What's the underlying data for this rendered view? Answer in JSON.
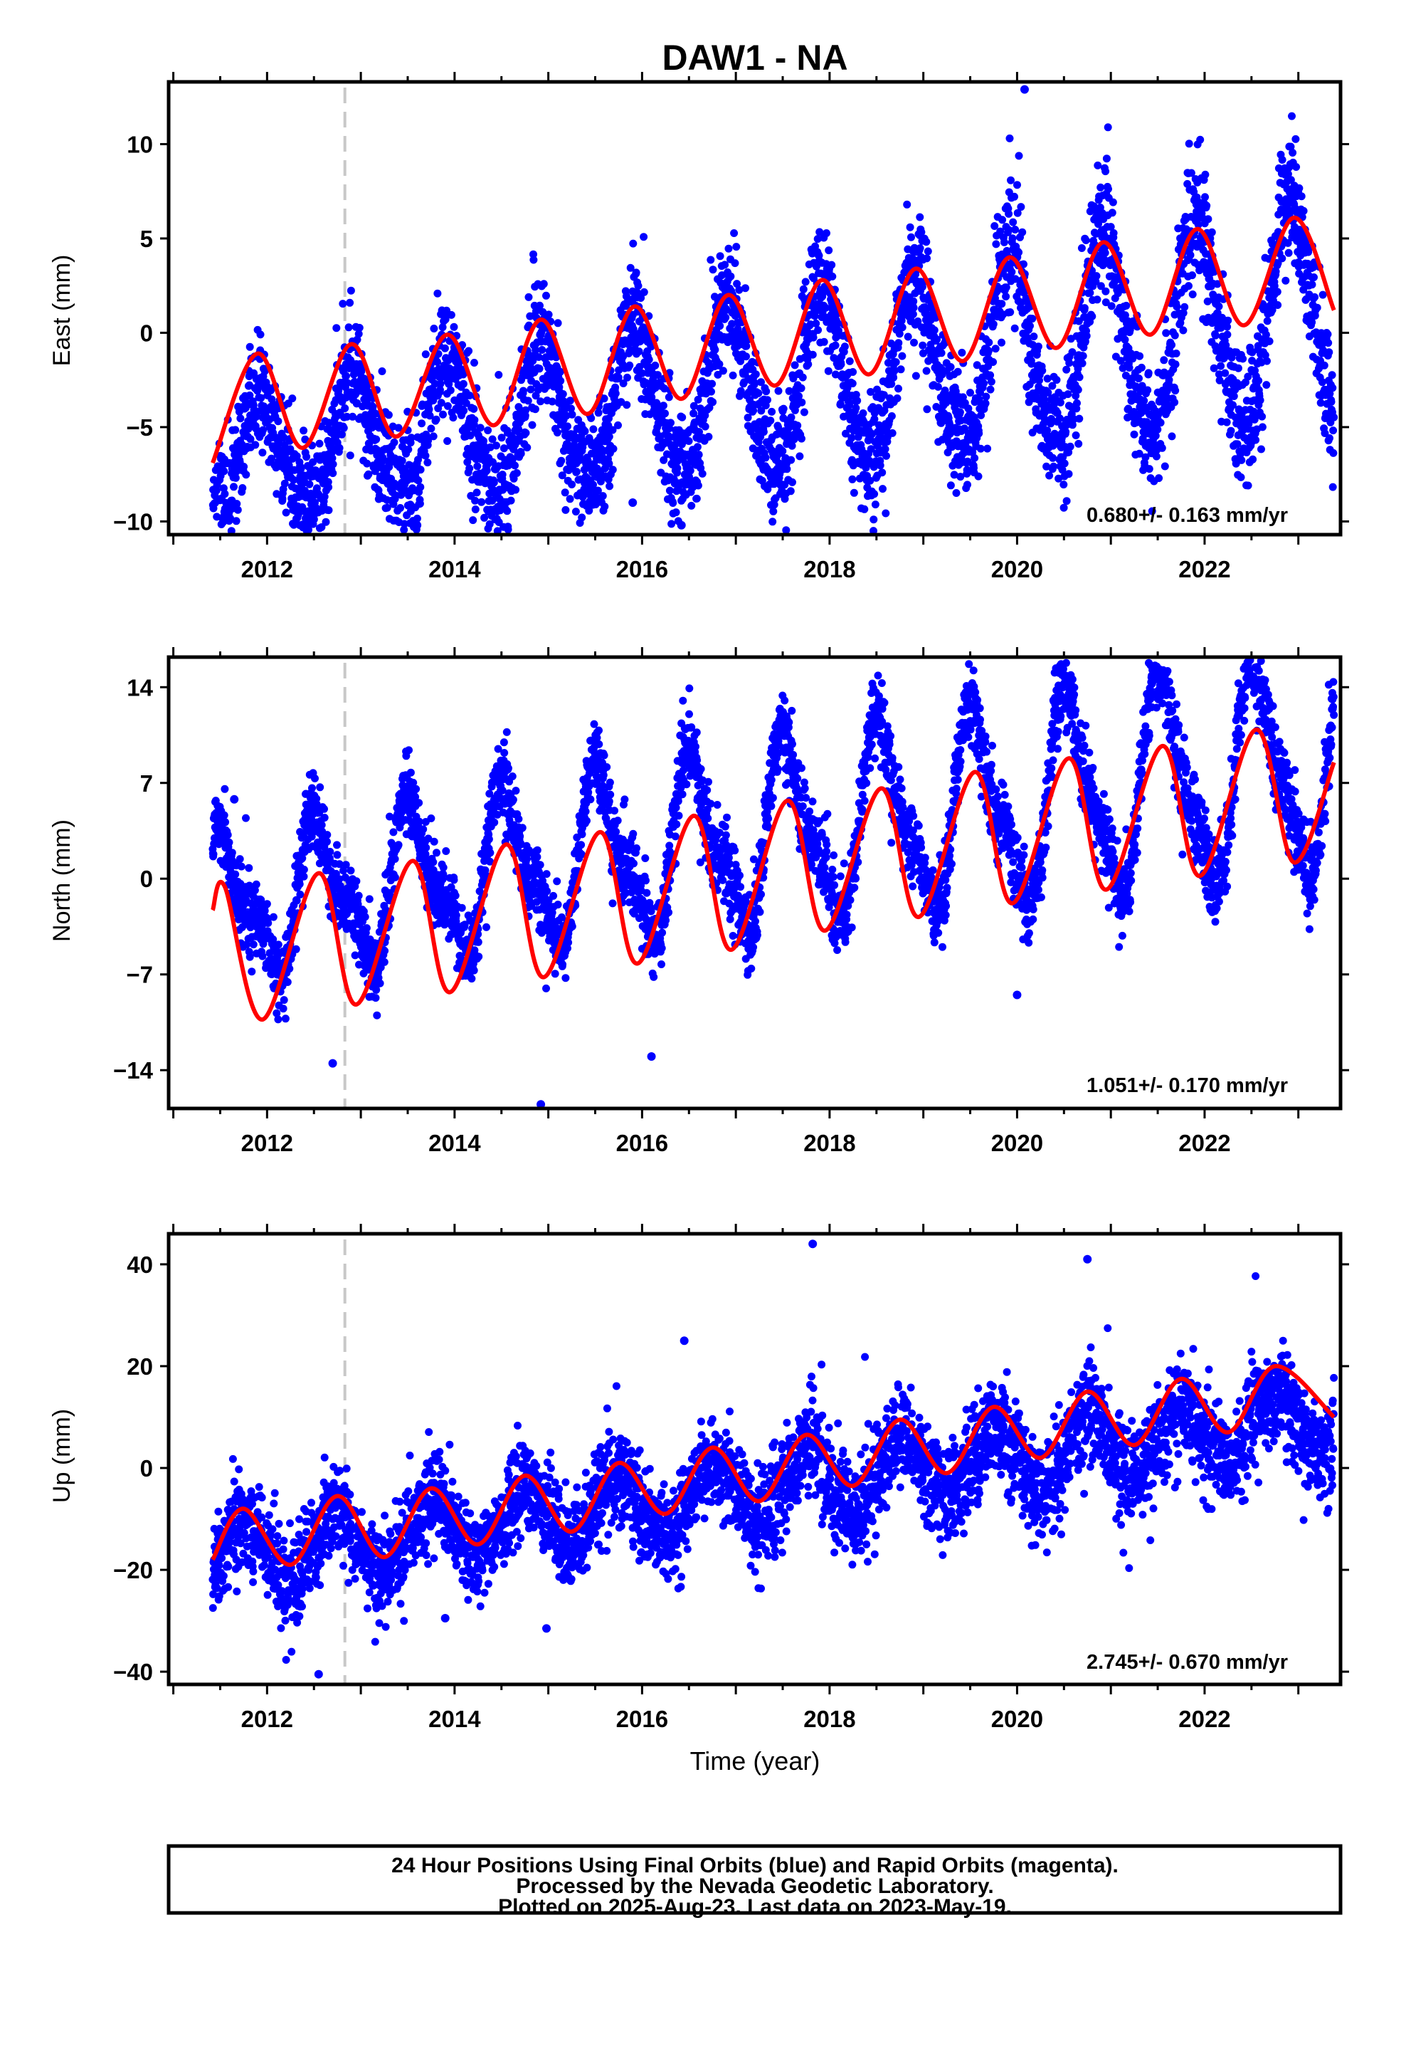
{
  "chart_data": {
    "type": "scatter",
    "title": "DAW1 - NA",
    "xlabel": "Time (year)",
    "x_ticks": [
      2012,
      2014,
      2016,
      2018,
      2020,
      2022
    ],
    "xlim": [
      2010.95,
      2023.45
    ],
    "data_range": [
      2011.42,
      2023.38
    ],
    "event_line_x": 2012.83,
    "colors": {
      "points": "#0000ff",
      "fit": "#ff0000",
      "event_line": "#c8c8c8",
      "frame": "#000000"
    },
    "panels": [
      {
        "ylabel": "East (mm)",
        "ylim": [
          -10.7,
          13.3
        ],
        "y_ticks": [
          -10,
          -5,
          0,
          5,
          10
        ],
        "rate_text": "0.680+/- 0.163 mm/yr",
        "series": [
          {
            "name": "daily positions",
            "kind": "points"
          },
          {
            "name": "model fit",
            "kind": "line"
          }
        ],
        "model": {
          "start": -6.9,
          "end": 1.3,
          "ann_amp": 3.0,
          "ann_peak": 0.92,
          "semi_amp": 0.5,
          "semi_peak": 0.87,
          "noise": 1.5,
          "amp_growth": 0.08
        },
        "fit_points": [
          [
            2011.42,
            -6.9
          ],
          [
            2011.9,
            -1.1
          ],
          [
            2012.38,
            -6.1
          ],
          [
            2012.9,
            -0.6
          ],
          [
            2013.38,
            -5.5
          ],
          [
            2013.92,
            -0.1
          ],
          [
            2014.42,
            -4.9
          ],
          [
            2014.92,
            0.7
          ],
          [
            2015.42,
            -4.3
          ],
          [
            2015.92,
            1.4
          ],
          [
            2016.42,
            -3.5
          ],
          [
            2016.92,
            2.0
          ],
          [
            2017.42,
            -2.8
          ],
          [
            2017.92,
            2.8
          ],
          [
            2018.42,
            -2.2
          ],
          [
            2018.92,
            3.4
          ],
          [
            2019.42,
            -1.5
          ],
          [
            2019.92,
            4.0
          ],
          [
            2020.42,
            -0.8
          ],
          [
            2020.92,
            4.8
          ],
          [
            2021.42,
            -0.1
          ],
          [
            2021.92,
            5.5
          ],
          [
            2022.42,
            0.4
          ],
          [
            2022.95,
            6.1
          ],
          [
            2023.38,
            1.2
          ]
        ],
        "outliers": [
          [
            2020.08,
            12.9
          ],
          [
            2016.42,
            -10.2
          ],
          [
            2013.6,
            -10.2
          ],
          [
            2012.5,
            -8.6
          ],
          [
            2015.9,
            -9.0
          ]
        ]
      },
      {
        "ylabel": "North (mm)",
        "ylim": [
          -16.8,
          16.2
        ],
        "y_ticks": [
          -14,
          -7,
          0,
          7,
          14
        ],
        "rate_text": "1.051+/- 0.170 mm/yr",
        "series": [
          {
            "name": "daily positions",
            "kind": "points"
          },
          {
            "name": "model fit",
            "kind": "line"
          }
        ],
        "model": {
          "start": -2.3,
          "end": 8.5,
          "ann_amp": 4.5,
          "ann_peak": 0.55,
          "semi_amp": 2.2,
          "semi_peak": 0.45,
          "noise": 1.3,
          "amp_growth": 0.06
        },
        "fit_points": [
          [
            2011.42,
            -2.3
          ],
          [
            2011.55,
            -0.6
          ],
          [
            2011.95,
            -10.3
          ],
          [
            2012.55,
            0.4
          ],
          [
            2012.95,
            -9.2
          ],
          [
            2013.55,
            1.3
          ],
          [
            2013.95,
            -8.3
          ],
          [
            2014.55,
            2.5
          ],
          [
            2014.95,
            -7.2
          ],
          [
            2015.55,
            3.4
          ],
          [
            2015.95,
            -6.2
          ],
          [
            2016.55,
            4.6
          ],
          [
            2016.95,
            -5.2
          ],
          [
            2017.55,
            5.7
          ],
          [
            2017.95,
            -3.8
          ],
          [
            2018.55,
            6.6
          ],
          [
            2018.95,
            -2.8
          ],
          [
            2019.55,
            7.8
          ],
          [
            2019.95,
            -1.8
          ],
          [
            2020.55,
            8.8
          ],
          [
            2020.95,
            -0.8
          ],
          [
            2021.55,
            9.7
          ],
          [
            2021.95,
            0.2
          ],
          [
            2022.55,
            10.9
          ],
          [
            2022.95,
            1.2
          ],
          [
            2023.38,
            8.5
          ]
        ],
        "outliers": [
          [
            2011.65,
            5.8
          ],
          [
            2021.5,
            15.3
          ],
          [
            2014.92,
            -16.5
          ],
          [
            2020.0,
            -8.5
          ],
          [
            2016.1,
            -13.0
          ],
          [
            2012.7,
            -13.5
          ]
        ]
      },
      {
        "ylabel": "Up (mm)",
        "ylim": [
          -42.5,
          46.0
        ],
        "y_ticks": [
          -40,
          -20,
          0,
          20,
          40
        ],
        "rate_text": "2.745+/- 0.670 mm/yr",
        "series": [
          {
            "name": "daily positions",
            "kind": "points"
          },
          {
            "name": "model fit",
            "kind": "line"
          }
        ],
        "model": {
          "start": -18.0,
          "end": 10.0,
          "ann_amp": 6.5,
          "ann_peak": 0.75,
          "semi_amp": 0.0,
          "semi_peak": 0.5,
          "noise": 4.5,
          "amp_growth": 0.0
        },
        "fit_points": [
          [
            2011.42,
            -18.0
          ],
          [
            2011.75,
            -8.0
          ],
          [
            2012.25,
            -19.0
          ],
          [
            2012.75,
            -5.5
          ],
          [
            2013.25,
            -17.5
          ],
          [
            2013.75,
            -4.0
          ],
          [
            2014.25,
            -15.0
          ],
          [
            2014.75,
            -1.5
          ],
          [
            2015.25,
            -12.5
          ],
          [
            2015.75,
            1.0
          ],
          [
            2016.25,
            -9.0
          ],
          [
            2016.75,
            4.0
          ],
          [
            2017.25,
            -6.5
          ],
          [
            2017.75,
            6.5
          ],
          [
            2018.25,
            -3.5
          ],
          [
            2018.75,
            9.5
          ],
          [
            2019.25,
            -1.0
          ],
          [
            2019.75,
            12.0
          ],
          [
            2020.25,
            2.0
          ],
          [
            2020.75,
            15.0
          ],
          [
            2021.25,
            4.5
          ],
          [
            2021.75,
            17.5
          ],
          [
            2022.25,
            7.0
          ],
          [
            2022.75,
            20.0
          ],
          [
            2023.38,
            10.0
          ]
        ],
        "outliers": [
          [
            2017.82,
            44.0
          ],
          [
            2020.75,
            41.0
          ],
          [
            2012.55,
            -40.5
          ],
          [
            2014.98,
            -31.5
          ],
          [
            2016.45,
            25.0
          ],
          [
            2013.9,
            -29.5
          ]
        ]
      }
    ]
  },
  "footer": {
    "line1": "24 Hour Positions Using Final Orbits (blue) and Rapid Orbits (magenta).",
    "line2": "Processed by the Nevada Geodetic Laboratory.",
    "line3": "Plotted on 2025-Aug-23. Last data on 2023-May-19."
  }
}
